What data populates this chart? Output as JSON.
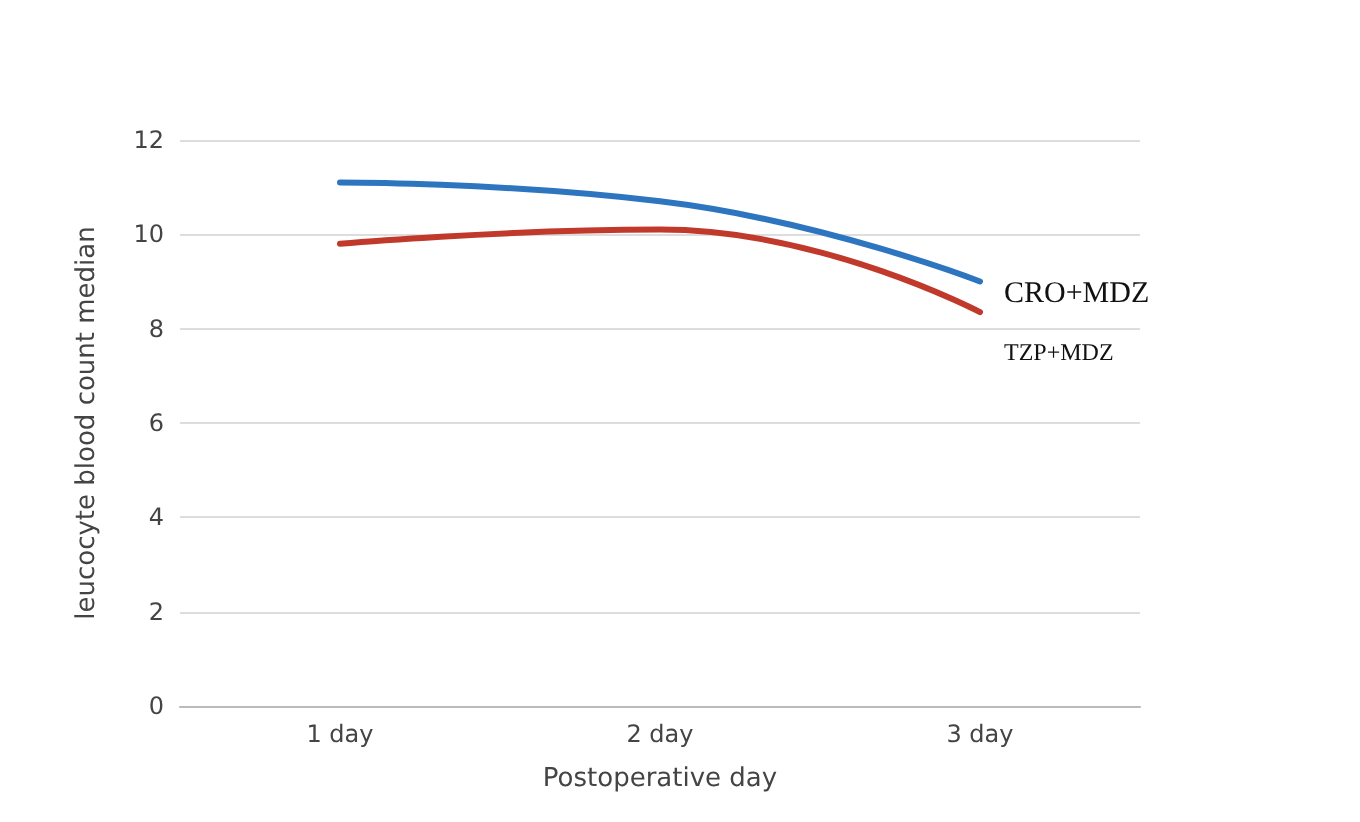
{
  "chart_data": {
    "type": "line",
    "xlabel": "Postoperative day",
    "ylabel": "leucocyte blood count median",
    "categories": [
      "1 day",
      "2 day",
      "3 day"
    ],
    "series": [
      {
        "name": "CRO+MDZ",
        "color": "#2e75c0",
        "values": [
          11.1,
          10.7,
          9.0
        ]
      },
      {
        "name": "TZP+MDZ",
        "color": "#c0392b",
        "values": [
          9.8,
          10.1,
          8.35
        ]
      }
    ],
    "ylim": [
      0,
      12
    ],
    "yticks": [
      0,
      2,
      4,
      6,
      8,
      10,
      12
    ],
    "grid": "y",
    "legend": false,
    "marker": "none",
    "line_style": "solid"
  }
}
